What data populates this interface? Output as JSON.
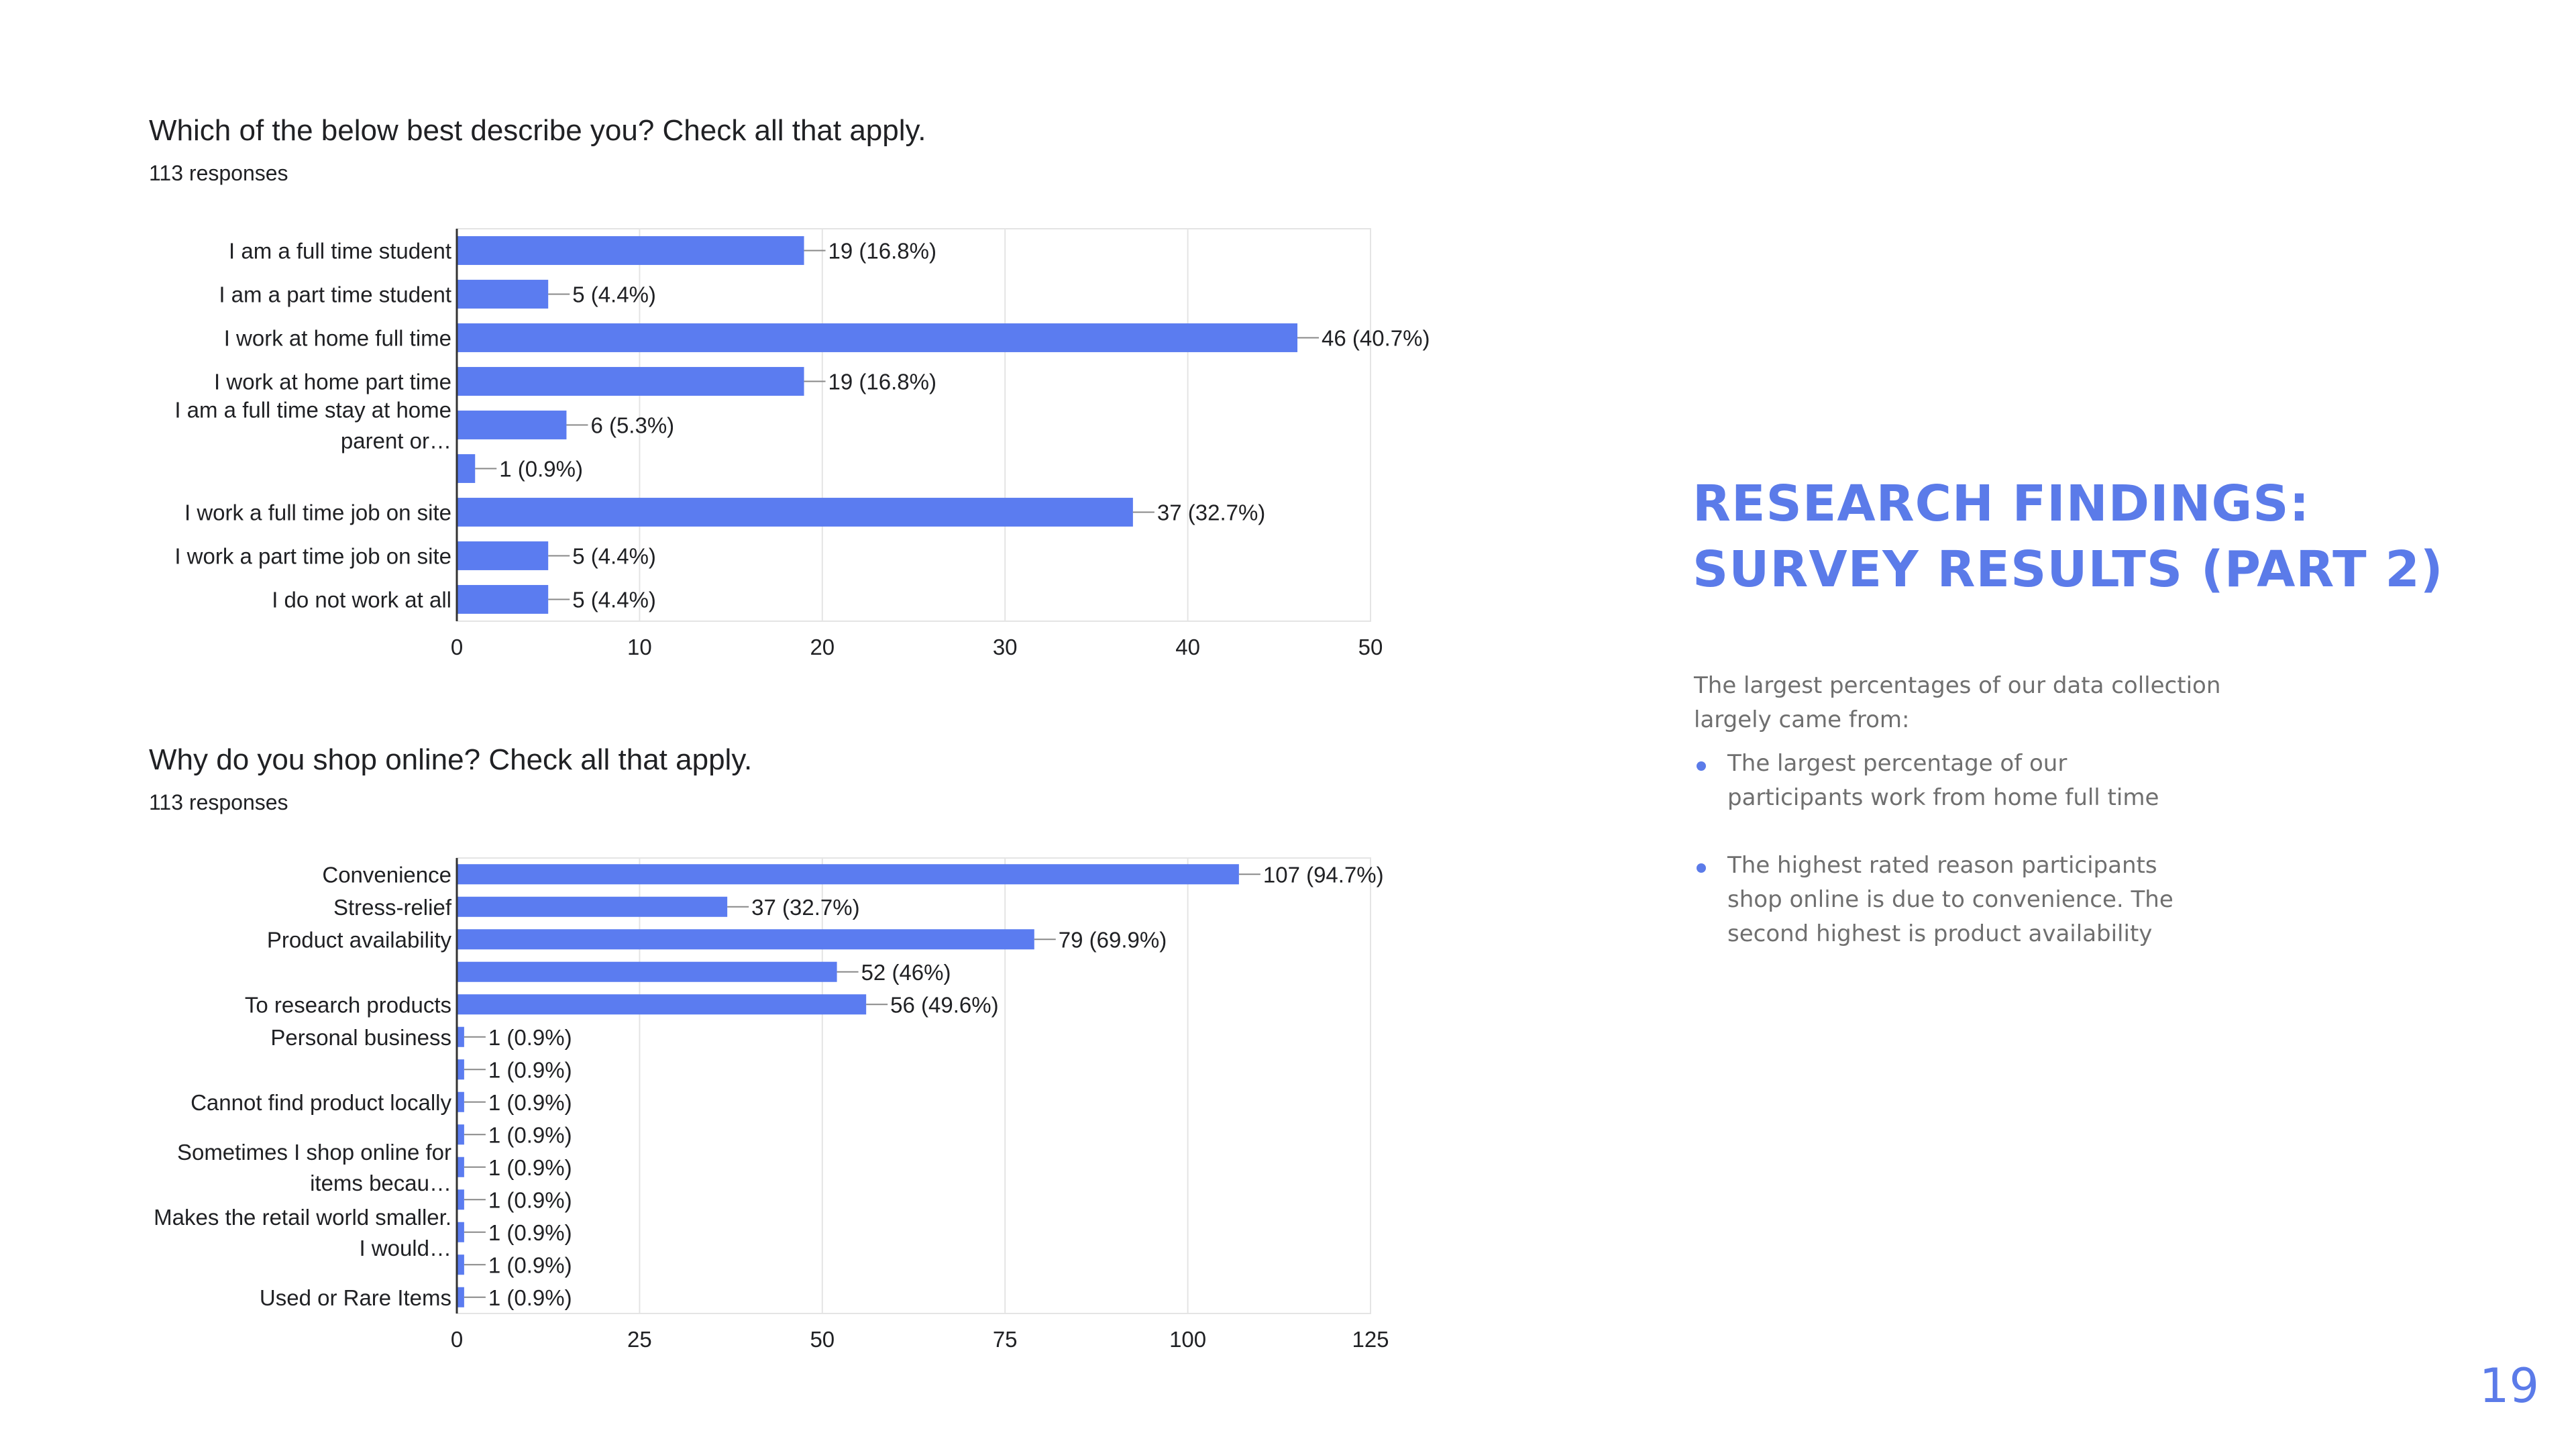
{
  "charts": {
    "chart1": {
      "title": "Which of the below best describe you? Check all that apply.",
      "responses": "113 responses"
    },
    "chart2": {
      "title": "Why do you shop online? Check all that apply.",
      "responses": "113 responses"
    }
  },
  "chart_data": [
    {
      "type": "bar",
      "orientation": "horizontal",
      "title": "Which of the below best describe you? Check all that apply.",
      "subtitle": "113 responses",
      "categories": [
        [
          "I am a full time student"
        ],
        [
          "I am a part time student"
        ],
        [
          "I work at home full time"
        ],
        [
          "I work at home part time"
        ],
        [
          "I am a full time stay at home",
          "parent or…"
        ],
        [
          ""
        ],
        [
          "I work a full time job on site"
        ],
        [
          "I work a part time job on site"
        ],
        [
          "I do not work at all"
        ]
      ],
      "values": [
        19,
        5,
        46,
        19,
        6,
        1,
        37,
        5,
        5
      ],
      "data_labels": [
        "19 (16.8%)",
        "5 (4.4%)",
        "46 (40.7%)",
        "19 (16.8%)",
        "6 (5.3%)",
        "1 (0.9%)",
        "37 (32.7%)",
        "5 (4.4%)",
        "5 (4.4%)"
      ],
      "xlim": [
        0,
        50
      ],
      "xticks": [
        0,
        10,
        20,
        30,
        40,
        50
      ],
      "grid": true,
      "color": "#5b7cf0"
    },
    {
      "type": "bar",
      "orientation": "horizontal",
      "title": "Why do you shop online? Check all that apply.",
      "subtitle": "113 responses",
      "categories": [
        [
          "Convenience"
        ],
        [
          "Stress-relief"
        ],
        [
          "Product availability"
        ],
        [
          ""
        ],
        [
          "To research products"
        ],
        [
          "Personal business"
        ],
        [
          ""
        ],
        [
          "Cannot find product locally"
        ],
        [
          ""
        ],
        [
          "Sometimes I shop online for",
          "items becau…"
        ],
        [
          ""
        ],
        [
          "Makes the retail world smaller.",
          "I would…"
        ],
        [
          ""
        ],
        [
          "Used or Rare Items"
        ]
      ],
      "values": [
        107,
        37,
        79,
        52,
        56,
        1,
        1,
        1,
        1,
        1,
        1,
        1,
        1,
        1
      ],
      "data_labels": [
        "107 (94.7%)",
        "37 (32.7%)",
        "79 (69.9%)",
        "52 (46%)",
        "56 (49.6%)",
        "1 (0.9%)",
        "1 (0.9%)",
        "1 (0.9%)",
        "1 (0.9%)",
        "1 (0.9%)",
        "1 (0.9%)",
        "1 (0.9%)",
        "1 (0.9%)",
        "1 (0.9%)"
      ],
      "xlim": [
        0,
        125
      ],
      "xticks": [
        0,
        25,
        50,
        75,
        100,
        125
      ],
      "grid": true,
      "color": "#5b7cf0"
    }
  ],
  "findings": {
    "heading_line1": "RESEARCH FINDINGS:",
    "heading_line2": "SURVEY RESULTS (PART 2)",
    "intro": "The largest percentages of our data collection largely came from:",
    "bullets": [
      "The largest percentage of our participants work from home full time",
      "The highest rated reason participants shop online is due to convenience. The second highest is product availability"
    ]
  },
  "page_number": "19",
  "colors": {
    "bar": "#5b7cf0",
    "accent": "#5b7be9",
    "body_text": "#6f6f6f",
    "gridline": "#e4e4e4"
  }
}
